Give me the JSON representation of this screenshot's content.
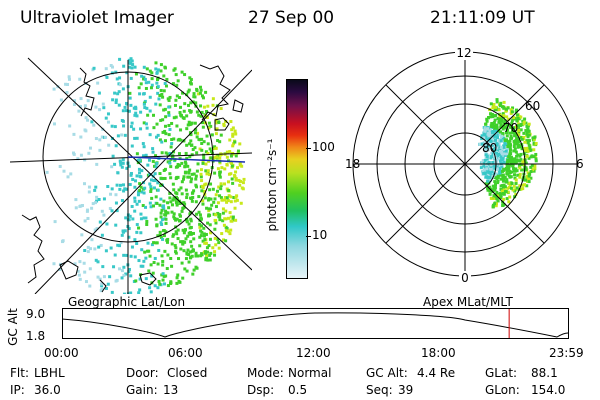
{
  "header": {
    "instrument": "Ultraviolet Imager",
    "date": "27 Sep 00",
    "time": "21:11:09 UT"
  },
  "geo_panel": {
    "caption": "Geographic Lat/Lon"
  },
  "polar_panel": {
    "caption": "Apex MLat/MLT",
    "mlt_labels": {
      "top": "12",
      "bottom": "0",
      "left": "18",
      "right": "6"
    },
    "lat_labels": [
      "80",
      "70",
      "60"
    ]
  },
  "colorbar": {
    "unit_label": "photon cm⁻²s⁻¹",
    "ticks": [
      "100",
      "10"
    ]
  },
  "altitude_plot": {
    "ylabel": "GC Alt",
    "y_ticks": [
      "9.0",
      "1.8"
    ],
    "x_ticks": [
      "00:00",
      "06:00",
      "12:00",
      "18:00",
      "23:59"
    ],
    "current_time_fraction": 0.8827,
    "current_marker_color": "#d00000"
  },
  "info": {
    "row1": [
      {
        "label": "Flt:",
        "value": "LBHL"
      },
      {
        "label": "Door:",
        "value": "Closed"
      },
      {
        "label": "Mode:",
        "value": "Normal"
      },
      {
        "label": "GC Alt:",
        "value": "4.4 Re"
      },
      {
        "label": "GLat:",
        "value": "88.1"
      }
    ],
    "row2": [
      {
        "label": "IP:",
        "value": "36.0"
      },
      {
        "label": "Gain:",
        "value": "13"
      },
      {
        "label": "Dsp:",
        "value": "0.5"
      },
      {
        "label": "Seq:",
        "value": "39"
      },
      {
        "label": "GLon:",
        "value": "154.0"
      }
    ]
  },
  "colors": {
    "aurora_green": "#3fd02a",
    "aurora_yellow": "#c8e81a",
    "aurora_cyan": "#38c8c8",
    "magnetic_line": "#1a2fb0"
  }
}
